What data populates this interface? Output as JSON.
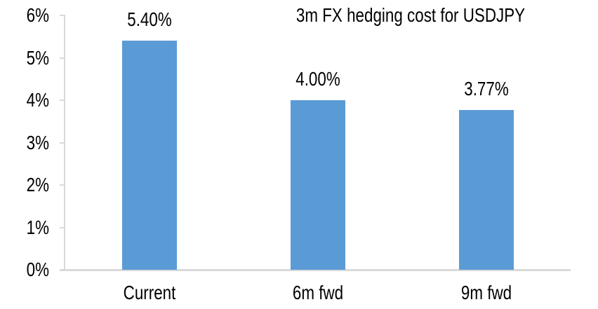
{
  "chart_data": {
    "type": "bar",
    "title": "3m FX hedging cost for USDJPY",
    "categories": [
      "Current",
      "6m fwd",
      "9m fwd"
    ],
    "values": [
      5.4,
      4.0,
      3.77
    ],
    "value_labels": [
      "5.40%",
      "4.00%",
      "3.77%"
    ],
    "xlabel": "",
    "ylabel": "",
    "ylim": [
      0,
      6
    ],
    "y_tick_values": [
      0,
      1,
      2,
      3,
      4,
      5,
      6
    ],
    "y_tick_labels": [
      "0%",
      "1%",
      "2%",
      "3%",
      "4%",
      "5%",
      "6%"
    ],
    "grid": "off",
    "legend": "none",
    "colors": {
      "bar": "#5B9BD5",
      "axis": "#D9D9D9",
      "text": "#000000",
      "background": "#FFFFFF"
    }
  }
}
